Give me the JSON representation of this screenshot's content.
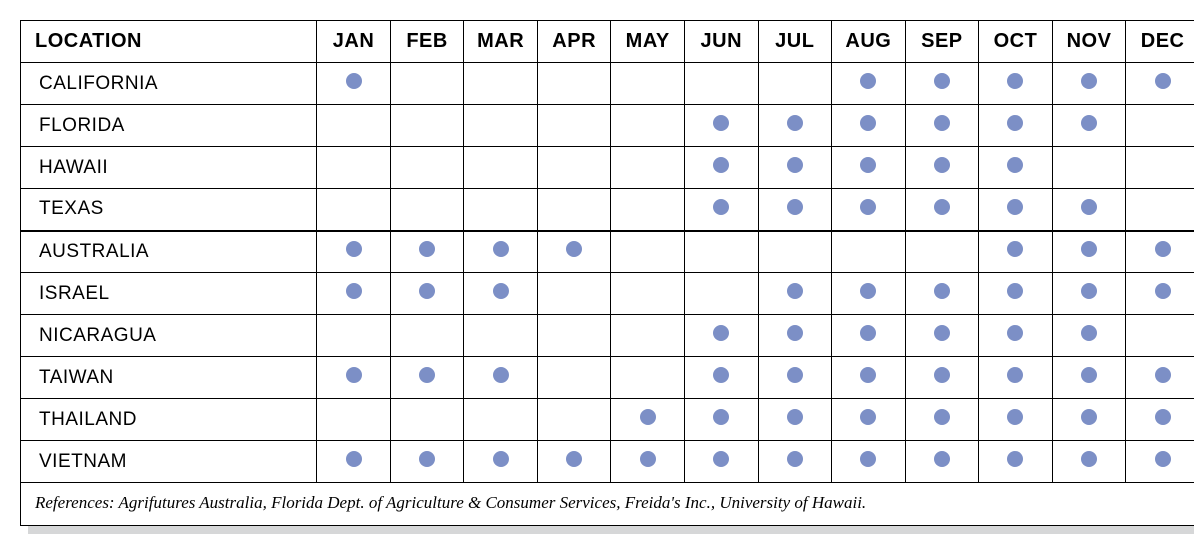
{
  "table": {
    "dot_color": "#7c8fc6",
    "headers": {
      "location": "LOCATION",
      "months": [
        "JAN",
        "FEB",
        "MAR",
        "APR",
        "MAY",
        "JUN",
        "JUL",
        "AUG",
        "SEP",
        "OCT",
        "NOV",
        "DEC"
      ]
    },
    "sections": [
      {
        "rows": [
          {
            "location": "CALIFORNIA",
            "months": [
              1,
              0,
              0,
              0,
              0,
              0,
              0,
              1,
              1,
              1,
              1,
              1
            ]
          },
          {
            "location": "FLORIDA",
            "months": [
              0,
              0,
              0,
              0,
              0,
              1,
              1,
              1,
              1,
              1,
              1,
              0
            ]
          },
          {
            "location": "HAWAII",
            "months": [
              0,
              0,
              0,
              0,
              0,
              1,
              1,
              1,
              1,
              1,
              0,
              0
            ]
          },
          {
            "location": "TEXAS",
            "months": [
              0,
              0,
              0,
              0,
              0,
              1,
              1,
              1,
              1,
              1,
              1,
              0
            ]
          }
        ]
      },
      {
        "rows": [
          {
            "location": "AUSTRALIA",
            "months": [
              1,
              1,
              1,
              1,
              0,
              0,
              0,
              0,
              0,
              1,
              1,
              1
            ]
          },
          {
            "location": "ISRAEL",
            "months": [
              1,
              1,
              1,
              0,
              0,
              0,
              1,
              1,
              1,
              1,
              1,
              1
            ]
          },
          {
            "location": "NICARAGUA",
            "months": [
              0,
              0,
              0,
              0,
              0,
              1,
              1,
              1,
              1,
              1,
              1,
              0
            ]
          },
          {
            "location": "TAIWAN",
            "months": [
              1,
              1,
              1,
              0,
              0,
              1,
              1,
              1,
              1,
              1,
              1,
              1
            ]
          },
          {
            "location": "THAILAND",
            "months": [
              0,
              0,
              0,
              0,
              1,
              1,
              1,
              1,
              1,
              1,
              1,
              1
            ]
          },
          {
            "location": "VIETNAM",
            "months": [
              1,
              1,
              1,
              1,
              1,
              1,
              1,
              1,
              1,
              1,
              1,
              1
            ]
          }
        ]
      }
    ],
    "footer": "References: Agrifutures Australia, Florida Dept. of Agriculture & Consumer Services, Freida's Inc., University of Hawaii."
  }
}
